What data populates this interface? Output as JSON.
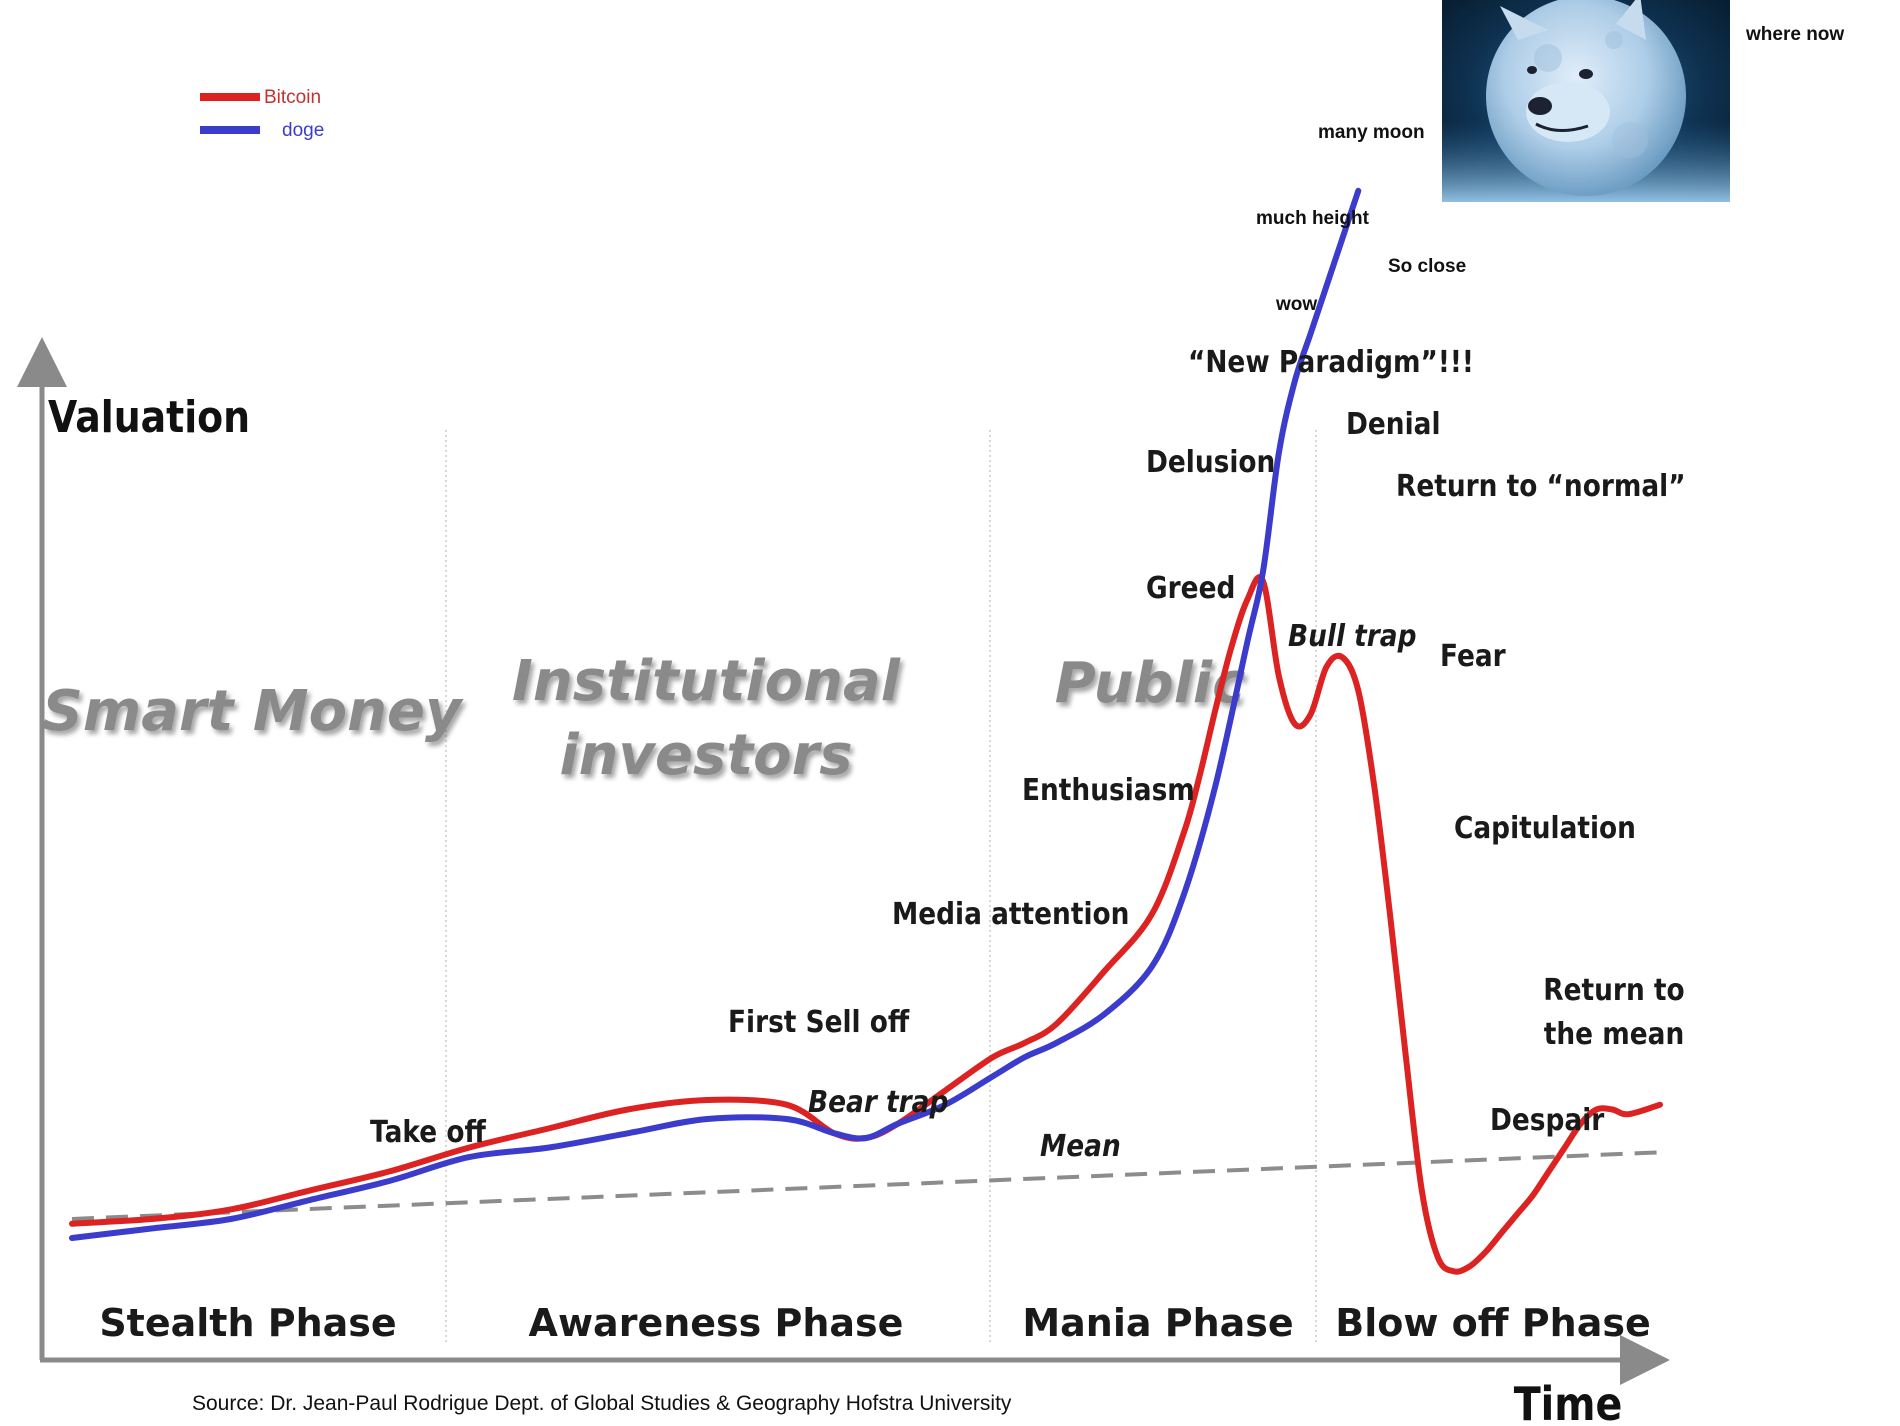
{
  "legend": {
    "bitcoin": "Bitcoin",
    "doge": "doge"
  },
  "colors": {
    "bitcoin": "#dd2222",
    "doge": "#3c3ccc",
    "axis": "#8a8a8a",
    "mean": "#8c8c8c",
    "phase_divider": "#d8d8d8",
    "watermark": "#8a8a8a"
  },
  "chart_data": {
    "type": "line",
    "title": "",
    "ylabel": "Valuation",
    "xlabel": "Time",
    "source": "Source: Dr. Jean-Paul Rodrigue Dept. of Global Studies & Geography Hofstra University",
    "phases": [
      "Stealth Phase",
      "Awareness Phase",
      "Mania Phase",
      "Blow off Phase"
    ],
    "investor_groups": [
      [
        "Smart Money"
      ],
      [
        "Institutional",
        "investors"
      ],
      [
        "Public"
      ]
    ],
    "annotations": [
      "Take off",
      "First Sell off",
      "Bear trap",
      "Mean",
      "Media attention",
      "Enthusiasm",
      "Greed",
      "Delusion",
      "“New Paradigm”!!!",
      "Denial",
      "Return to “normal”",
      "Bull trap",
      "Fear",
      "Capitulation",
      "Despair",
      "Return to",
      "the mean"
    ],
    "doge_annotations": [
      "wow",
      "much height",
      "So close",
      "many moon",
      "where now"
    ],
    "mean_line": {
      "x": [
        0,
        100
      ],
      "y": [
        4,
        18
      ]
    },
    "series": [
      {
        "name": "Bitcoin",
        "x": [
          0,
          5,
          10,
          15,
          20,
          25,
          30,
          35,
          40,
          45,
          48,
          50,
          52,
          55,
          58,
          60,
          62,
          65,
          68,
          70,
          71,
          72,
          73,
          74,
          75,
          76,
          77,
          78,
          79,
          80,
          81,
          82,
          83,
          84,
          85,
          86,
          87,
          88,
          89,
          90,
          91,
          92,
          93,
          94,
          95,
          96,
          97,
          98,
          100
        ],
        "y": [
          3,
          4,
          6,
          10,
          14,
          19,
          23,
          27,
          29,
          28,
          22,
          21,
          24,
          31,
          38,
          41,
          45,
          56,
          68,
          85,
          97,
          111,
          124,
          134,
          138,
          118,
          108,
          110,
          120,
          122,
          115,
          95,
          68,
          38,
          10,
          -4,
          -7,
          -6,
          -3,
          1,
          5,
          9,
          14,
          19,
          24,
          27,
          27,
          26,
          28
        ]
      },
      {
        "name": "doge",
        "x": [
          0,
          5,
          10,
          15,
          20,
          25,
          30,
          35,
          40,
          45,
          48,
          50,
          52,
          55,
          58,
          60,
          62,
          65,
          68,
          70,
          72,
          74,
          75,
          76,
          77,
          78,
          79,
          80,
          81
        ],
        "y": [
          0,
          2,
          4,
          8,
          12,
          17,
          19,
          22,
          25,
          25,
          22,
          21,
          24,
          28,
          34,
          38,
          41,
          47,
          57,
          72,
          95,
          125,
          140,
          165,
          180,
          190,
          200,
          210,
          220
        ]
      }
    ]
  }
}
